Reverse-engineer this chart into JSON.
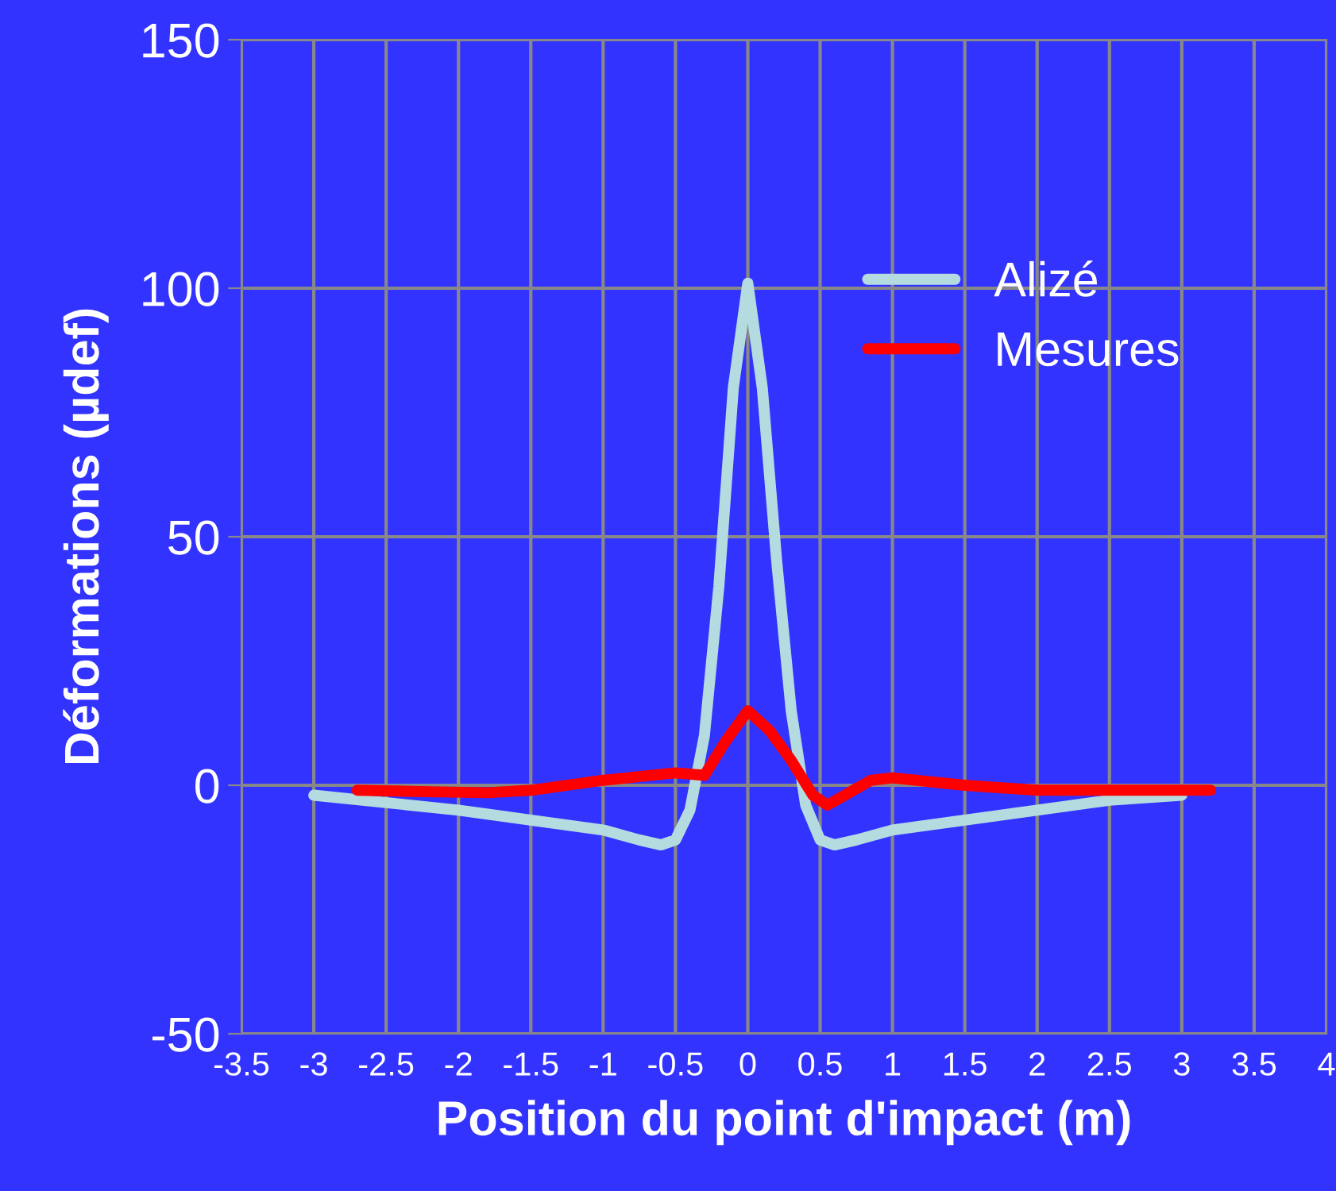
{
  "chart_data": {
    "type": "line",
    "xlabel": "Position du point d'impact (m)",
    "ylabel": "Déformations (µdef)",
    "xlim": [
      -3.5,
      4
    ],
    "xticks": [
      -3.5,
      -3,
      -2.5,
      -2,
      -1.5,
      -1,
      -0.5,
      0,
      0.5,
      1,
      1.5,
      2,
      2.5,
      3,
      3.5,
      4
    ],
    "ylim": [
      -50,
      150
    ],
    "yticks": [
      -50,
      0,
      50,
      100,
      150
    ],
    "grid": true,
    "legend": "top right",
    "marker": "none",
    "line_style": "solid",
    "series": [
      {
        "name": "Alizé",
        "color": "#b4dce0",
        "x": [
          -3,
          -2.5,
          -2,
          -1.5,
          -1,
          -0.75,
          -0.6,
          -0.5,
          -0.4,
          -0.3,
          -0.2,
          -0.1,
          0,
          0.1,
          0.2,
          0.3,
          0.4,
          0.5,
          0.6,
          0.75,
          1,
          1.5,
          2,
          2.5,
          3
        ],
        "values": [
          -2,
          -3.5,
          -5,
          -7,
          -9,
          -11,
          -12,
          -11,
          -5,
          10,
          40,
          80,
          101,
          80,
          45,
          15,
          -4,
          -11,
          -12,
          -11,
          -9,
          -7,
          -5,
          -3,
          -2
        ]
      },
      {
        "name": "Mesures",
        "color": "#ff0000",
        "x": [
          -2.7,
          -2.2,
          -1.8,
          -1.5,
          -1,
          -0.5,
          -0.3,
          -0.15,
          0,
          0.15,
          0.3,
          0.45,
          0.55,
          0.7,
          0.85,
          1,
          1.5,
          2,
          2.5,
          3.2
        ],
        "values": [
          -1,
          -1.3,
          -1.5,
          -1,
          1,
          2.5,
          2,
          9,
          15,
          11,
          5,
          -2,
          -4,
          -1.5,
          1,
          1.5,
          0,
          -1,
          -1,
          -1
        ]
      }
    ]
  }
}
